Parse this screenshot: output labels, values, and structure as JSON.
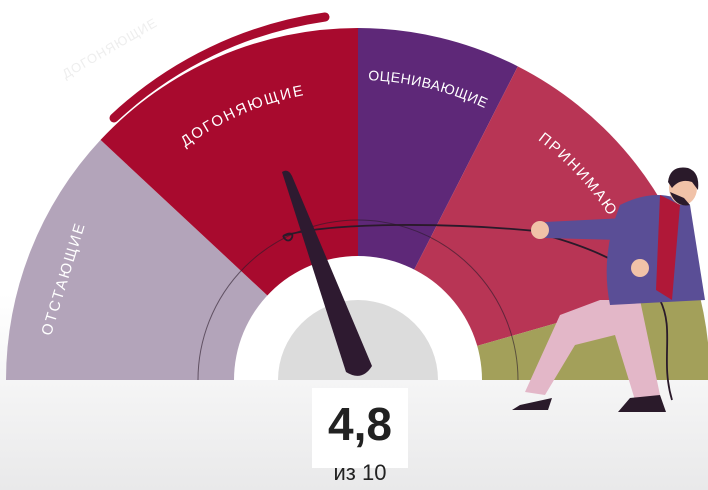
{
  "gauge": {
    "segments": [
      {
        "label": "ОТСТАЮЩИЕ"
      },
      {
        "label": "ДОГОНЯЮЩИЕ"
      },
      {
        "label": "ОЦЕНИВАЮЩИЕ"
      },
      {
        "label": "ПРИНИМАЮ"
      }
    ],
    "faint_label": "ДОГОНЯЮЩИЕ",
    "score": "4,8",
    "score_suffix": "из 10"
  }
}
